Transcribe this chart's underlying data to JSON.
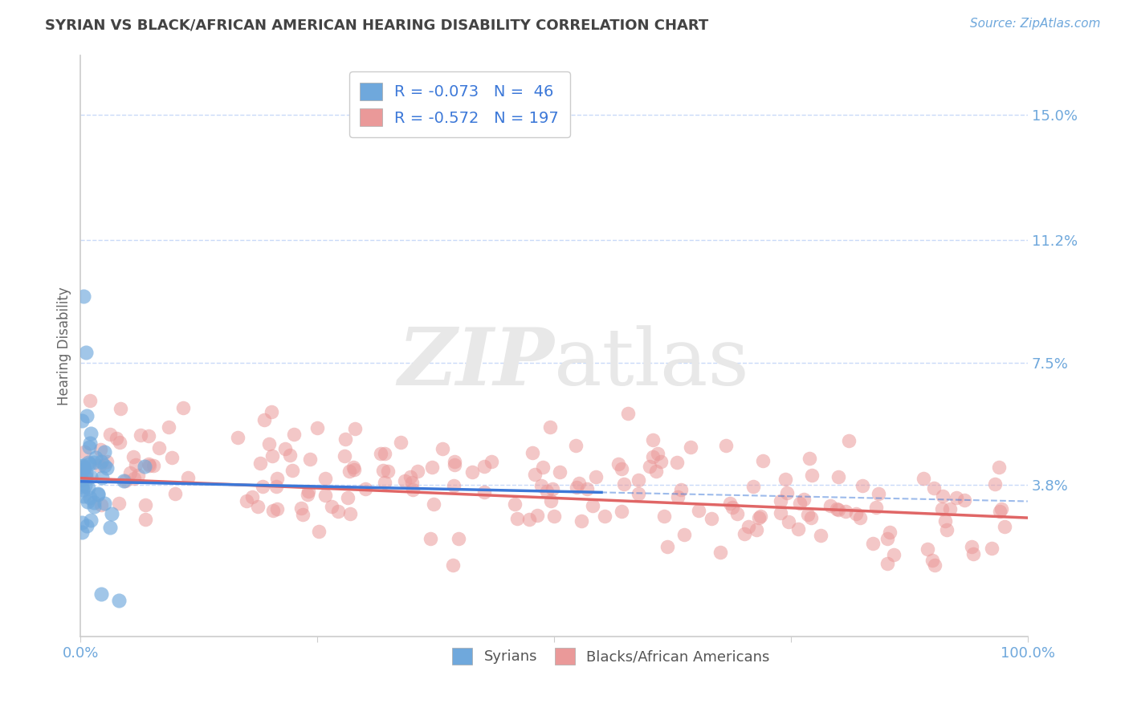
{
  "title": "SYRIAN VS BLACK/AFRICAN AMERICAN HEARING DISABILITY CORRELATION CHART",
  "source": "Source: ZipAtlas.com",
  "ylabel": "Hearing Disability",
  "xlim": [
    0,
    1.0
  ],
  "ylim": [
    -0.008,
    0.168
  ],
  "yticks": [
    0.038,
    0.075,
    0.112,
    0.15
  ],
  "ytick_labels": [
    "3.8%",
    "7.5%",
    "11.2%",
    "15.0%"
  ],
  "xtick_labels": [
    "0.0%",
    "100.0%"
  ],
  "legend_label1": "Syrians",
  "legend_label2": "Blacks/African Americans",
  "R1": -0.073,
  "N1": 46,
  "R2": -0.572,
  "N2": 197,
  "color_blue": "#6fa8dc",
  "color_pink": "#ea9999",
  "color_blue_line": "#3c78d8",
  "color_pink_line": "#e06666",
  "tick_color": "#6fa8dc",
  "grid_color": "#c9daf8",
  "title_color": "#434343",
  "watermark_color": "#e8e8e8",
  "blue_scatter_seed": 77,
  "pink_scatter_seed": 55
}
